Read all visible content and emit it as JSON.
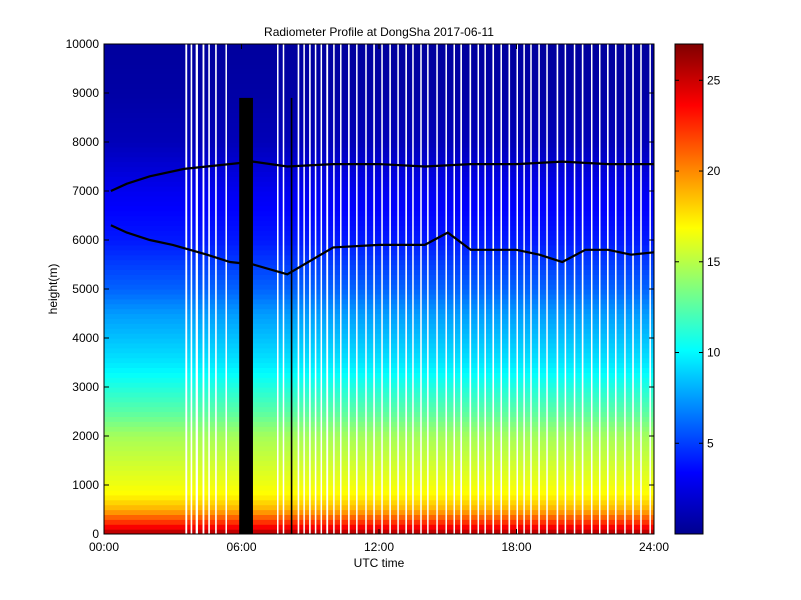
{
  "chart_data": {
    "type": "heatmap",
    "title": "Radiometer Profile at DongSha 2017-06-11",
    "xlabel": "UTC time",
    "ylabel": "height(m)",
    "x_ticks": [
      "00:00",
      "06:00",
      "12:00",
      "18:00",
      "24:00"
    ],
    "x_tick_hours": [
      0,
      6,
      12,
      18,
      24
    ],
    "xlim_hours": [
      0,
      24
    ],
    "y_ticks": [
      0,
      1000,
      2000,
      3000,
      4000,
      5000,
      6000,
      7000,
      8000,
      9000,
      10000
    ],
    "ylim": [
      0,
      10000
    ],
    "colorbar": {
      "ticks": [
        5,
        10,
        15,
        20,
        25
      ],
      "range": [
        0,
        27
      ],
      "colormap": "jet"
    },
    "value_profile": {
      "height_m": [
        0,
        200,
        500,
        800,
        1000,
        1500,
        2000,
        2500,
        3000,
        3500,
        4000,
        4500,
        5000,
        6000,
        7000,
        8000,
        9000,
        10000
      ],
      "value": [
        26,
        23,
        19,
        17,
        16.5,
        15.5,
        14.5,
        12.5,
        11,
        9.5,
        8.5,
        7.5,
        6,
        4,
        3,
        1.5,
        1,
        0.8
      ]
    },
    "missing_hour_ranges": [
      [
        3.55,
        3.63
      ],
      [
        3.78,
        3.85
      ],
      [
        4.0,
        4.1
      ],
      [
        4.3,
        4.38
      ],
      [
        4.55,
        4.62
      ],
      [
        4.85,
        4.92
      ],
      [
        5.3,
        5.36
      ],
      [
        7.55,
        7.6
      ],
      [
        7.8,
        7.86
      ],
      [
        8.45,
        8.52
      ],
      [
        8.7,
        8.76
      ],
      [
        8.95,
        9.02
      ],
      [
        9.2,
        9.26
      ],
      [
        9.45,
        9.5
      ],
      [
        9.7,
        9.78
      ],
      [
        10.0,
        10.06
      ],
      [
        10.3,
        10.36
      ],
      [
        10.65,
        10.72
      ],
      [
        11.0,
        11.06
      ],
      [
        11.4,
        11.46
      ],
      [
        11.75,
        11.82
      ],
      [
        12.1,
        12.16
      ],
      [
        12.45,
        12.52
      ],
      [
        12.8,
        12.86
      ],
      [
        13.15,
        13.22
      ],
      [
        13.45,
        13.5
      ],
      [
        13.8,
        13.86
      ],
      [
        14.1,
        14.16
      ],
      [
        14.5,
        14.56
      ],
      [
        14.9,
        14.96
      ],
      [
        15.25,
        15.3
      ],
      [
        15.55,
        15.62
      ],
      [
        15.95,
        16.02
      ],
      [
        16.3,
        16.36
      ],
      [
        16.6,
        16.66
      ],
      [
        16.95,
        17.02
      ],
      [
        17.3,
        17.36
      ],
      [
        17.65,
        17.72
      ],
      [
        18.0,
        18.06
      ],
      [
        18.3,
        18.36
      ],
      [
        18.6,
        18.66
      ],
      [
        18.95,
        19.02
      ],
      [
        19.3,
        19.36
      ],
      [
        19.75,
        19.82
      ],
      [
        20.1,
        20.16
      ],
      [
        20.5,
        20.56
      ],
      [
        20.85,
        20.92
      ],
      [
        21.25,
        21.3
      ],
      [
        21.6,
        21.66
      ],
      [
        21.95,
        22.02
      ],
      [
        22.3,
        22.36
      ],
      [
        22.7,
        22.76
      ],
      [
        23.05,
        23.12
      ],
      [
        23.4,
        23.46
      ],
      [
        23.8,
        23.86
      ]
    ],
    "no_data_block_hours": [
      [
        5.9,
        6.5
      ],
      [
        8.15,
        8.22
      ]
    ],
    "contour_upper": {
      "hour": [
        0.3,
        1.0,
        2.0,
        3.5,
        6.5,
        8.0,
        10.0,
        12.0,
        14.0,
        16.0,
        18.0,
        20.0,
        22.0,
        24.0
      ],
      "height_m": [
        7000,
        7150,
        7300,
        7450,
        7600,
        7500,
        7550,
        7550,
        7500,
        7550,
        7550,
        7600,
        7550,
        7550
      ]
    },
    "contour_lower": {
      "hour": [
        0.3,
        1.0,
        2.0,
        3.0,
        4.5,
        5.5,
        6.5,
        8.0,
        10.0,
        12.0,
        14.0,
        15.0,
        16.0,
        18.0,
        19.0,
        20.0,
        21.0,
        22.0,
        23.0,
        24.0
      ],
      "height_m": [
        6300,
        6150,
        6000,
        5900,
        5700,
        5550,
        5500,
        5300,
        5850,
        5900,
        5900,
        6150,
        5800,
        5800,
        5700,
        5550,
        5800,
        5800,
        5700,
        5750
      ]
    }
  }
}
